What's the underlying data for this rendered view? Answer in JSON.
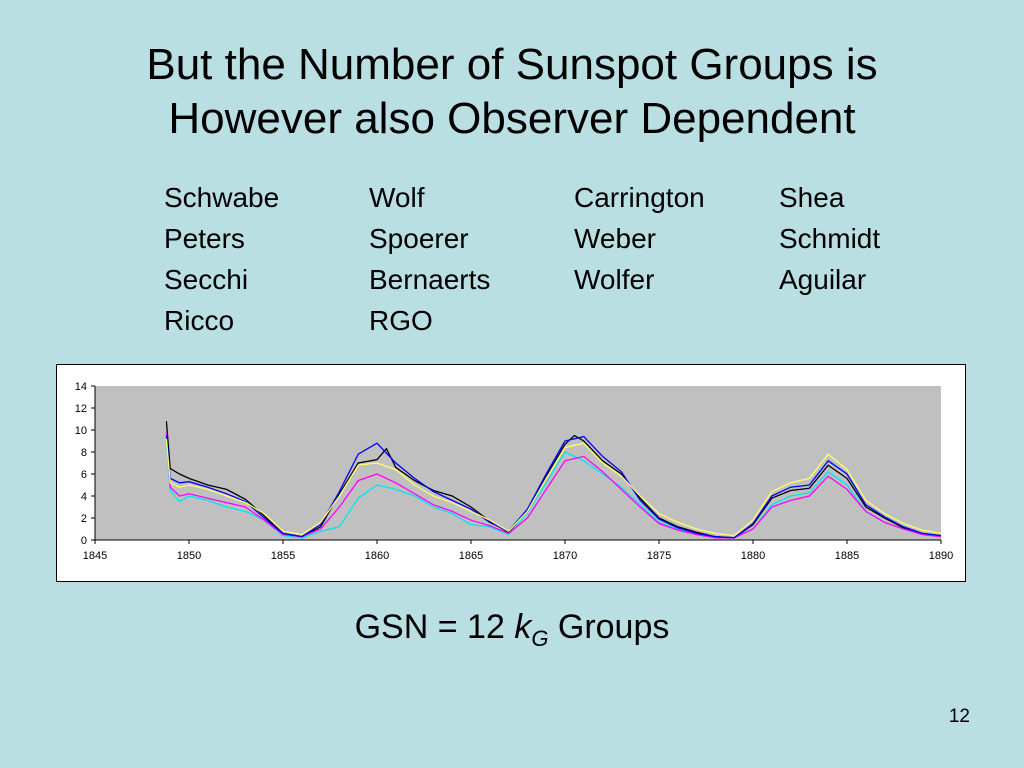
{
  "slide": {
    "title_line1": "But the Number of Sunspot Groups is",
    "title_line2": "However also Observer Dependent",
    "observers": [
      [
        "Schwabe",
        "Wolf",
        "Carrington",
        "Shea"
      ],
      [
        "Peters",
        "Spoerer",
        "Weber",
        "Schmidt"
      ],
      [
        "Secchi",
        "Bernaerts",
        "Wolfer",
        "Aguilar"
      ],
      [
        "Ricco",
        "RGO",
        "",
        ""
      ]
    ],
    "formula": {
      "prefix": "GSN = 12 ",
      "k": "k",
      "sub": "G",
      "suffix": " Groups"
    },
    "page_number": "12"
  },
  "chart_data": {
    "type": "line",
    "xlim": [
      1845,
      1890
    ],
    "ylim": [
      0,
      14
    ],
    "x_ticks": [
      "1845",
      "1850",
      "1855",
      "1860",
      "1865",
      "1870",
      "1875",
      "1880",
      "1885",
      "1890"
    ],
    "y_ticks": [
      "0",
      "2",
      "4",
      "6",
      "8",
      "10",
      "12",
      "14"
    ],
    "grid": false,
    "plot_background": "#c0c0c0",
    "series": [
      {
        "color": "#000000",
        "x": [
          1848.8,
          1849,
          1849.5,
          1850,
          1851,
          1852,
          1853,
          1854,
          1855,
          1856,
          1857,
          1858,
          1859,
          1860,
          1860.5,
          1861,
          1862,
          1863,
          1864,
          1865,
          1866,
          1867,
          1868,
          1869,
          1870,
          1870.5,
          1871,
          1872,
          1873,
          1874,
          1875,
          1876,
          1877,
          1878,
          1879,
          1880,
          1881,
          1882,
          1883,
          1884,
          1885,
          1886,
          1887,
          1888,
          1889,
          1890
        ],
        "values": [
          10.8,
          6.5,
          6,
          5.6,
          5,
          4.6,
          3.7,
          2.2,
          0.6,
          0.3,
          1.2,
          4.2,
          7,
          7.3,
          8.3,
          6.6,
          5.4,
          4.5,
          4,
          3,
          1.7,
          0.7,
          2.7,
          5.8,
          8.7,
          9.5,
          9,
          7.2,
          6,
          3.8,
          2,
          1.2,
          0.7,
          0.3,
          0.2,
          1.4,
          3.8,
          4.5,
          4.7,
          6.8,
          5.6,
          3,
          2,
          1.1,
          0.6,
          0.4
        ]
      },
      {
        "color": "#00e5ee",
        "x": [
          1848.8,
          1849,
          1849.5,
          1850,
          1851,
          1852,
          1853,
          1854,
          1855,
          1856,
          1857,
          1858,
          1859,
          1860,
          1861,
          1862,
          1863,
          1864,
          1865,
          1866,
          1867,
          1868,
          1869,
          1870,
          1871,
          1872,
          1873,
          1874,
          1875,
          1876,
          1877,
          1878,
          1879,
          1880,
          1881,
          1882,
          1883,
          1884,
          1885,
          1886,
          1887,
          1888,
          1889,
          1890
        ],
        "values": [
          9,
          4.5,
          3.5,
          4,
          3.6,
          3,
          2.6,
          1.8,
          0.4,
          0.2,
          0.8,
          1.2,
          3.8,
          5,
          4.6,
          4,
          3,
          2.4,
          1.4,
          1.2,
          0.5,
          2.5,
          5.2,
          8,
          7.2,
          6,
          4.8,
          3.2,
          1.6,
          1,
          0.5,
          0.2,
          0.2,
          1,
          3.2,
          4,
          4.3,
          6.2,
          5,
          2.6,
          1.6,
          1,
          0.5,
          0.3
        ]
      },
      {
        "color": "#ff00ff",
        "x": [
          1848.8,
          1849,
          1849.5,
          1850,
          1851,
          1852,
          1853,
          1854,
          1855,
          1856,
          1857,
          1858,
          1859,
          1860,
          1861,
          1862,
          1863,
          1864,
          1865,
          1866,
          1867,
          1868,
          1869,
          1870,
          1871,
          1872,
          1873,
          1874,
          1875,
          1876,
          1877,
          1878,
          1879,
          1880,
          1881,
          1882,
          1883,
          1884,
          1885,
          1886,
          1887,
          1888,
          1889,
          1890
        ],
        "values": [
          9.8,
          4.8,
          4,
          4.2,
          3.8,
          3.4,
          3,
          1.8,
          0.5,
          0.3,
          1,
          3,
          5.4,
          6,
          5.2,
          4.2,
          3.2,
          2.6,
          1.8,
          1.3,
          0.6,
          2,
          4.6,
          7.2,
          7.6,
          6.2,
          4.6,
          3,
          1.5,
          0.9,
          0.5,
          0.2,
          0.2,
          1,
          3,
          3.6,
          4,
          5.8,
          4.6,
          2.6,
          1.6,
          1,
          0.5,
          0.3
        ]
      },
      {
        "color": "#0000ff",
        "x": [
          1848.8,
          1849,
          1849.5,
          1850,
          1851,
          1852,
          1853,
          1854,
          1855,
          1856,
          1857,
          1858,
          1859,
          1860,
          1861,
          1862,
          1863,
          1864,
          1865,
          1866,
          1867,
          1868,
          1869,
          1870,
          1871,
          1872,
          1873,
          1874,
          1875,
          1876,
          1877,
          1878,
          1879,
          1880,
          1881,
          1882,
          1883,
          1884,
          1885,
          1886,
          1887,
          1888,
          1889,
          1890
        ],
        "values": [
          9.5,
          5.6,
          5.2,
          5.3,
          4.8,
          4.2,
          3.5,
          2,
          0.6,
          0.3,
          1.4,
          4.4,
          7.8,
          8.8,
          7,
          5.6,
          4.4,
          3.6,
          2.8,
          1.6,
          0.8,
          2.8,
          6,
          9,
          9.4,
          7.6,
          6.2,
          3.6,
          1.9,
          1.1,
          0.6,
          0.3,
          0.2,
          1.5,
          4,
          4.8,
          5,
          7.2,
          6,
          3.2,
          2.1,
          1.2,
          0.6,
          0.4
        ]
      },
      {
        "color": "#ffff66",
        "x": [
          1848.8,
          1849,
          1849.5,
          1850,
          1851,
          1852,
          1853,
          1854,
          1855,
          1856,
          1857,
          1858,
          1859,
          1860,
          1861,
          1862,
          1863,
          1864,
          1865,
          1866,
          1867,
          1868,
          1869,
          1870,
          1871,
          1872,
          1873,
          1874,
          1875,
          1876,
          1877,
          1878,
          1879,
          1880,
          1881,
          1882,
          1883,
          1884,
          1885,
          1886,
          1887,
          1888,
          1889,
          1890
        ],
        "values": [
          9.2,
          5.2,
          4.8,
          5,
          4.6,
          4,
          3.4,
          2.4,
          0.8,
          0.5,
          1.6,
          4,
          6.8,
          7,
          6.4,
          5,
          4,
          3.4,
          2.6,
          1.8,
          0.8,
          2.6,
          5.6,
          8.4,
          8.8,
          7,
          5.8,
          4,
          2.4,
          1.6,
          1,
          0.6,
          0.4,
          1.8,
          4.4,
          5.2,
          5.6,
          7.8,
          6.4,
          3.6,
          2.4,
          1.5,
          0.9,
          0.6
        ]
      }
    ]
  }
}
